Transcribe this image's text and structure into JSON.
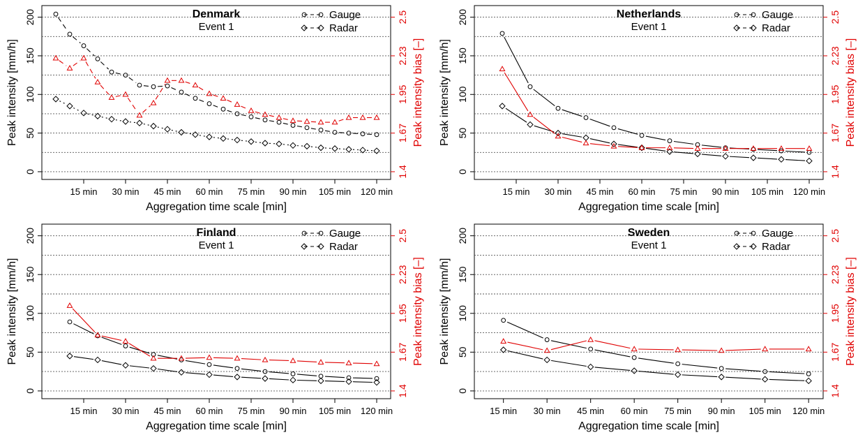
{
  "colors": {
    "gauge": "#000000",
    "radar": "#000000",
    "bias": "#e00000",
    "axis": "#000000",
    "grid": "#555555"
  },
  "legend": {
    "gauge": "Gauge",
    "radar": "Radar"
  },
  "chart_data": [
    {
      "type": "line",
      "title": "Denmark",
      "subtitle": "Event 1",
      "xlabel": "Aggregation time scale [min]",
      "ylabel": "Peak intensity [mm/h]",
      "y2label": "Peak intensity bias [–]",
      "x_ticks": [
        15,
        30,
        45,
        60,
        75,
        90,
        105,
        120
      ],
      "x_tick_labels": [
        "15 min",
        "30 min",
        "45 min",
        "60 min",
        "75 min",
        "90 min",
        "105 min",
        "120 min"
      ],
      "xlim": [
        0,
        125
      ],
      "y_ticks": [
        0,
        50,
        100,
        150,
        200
      ],
      "ylim": [
        -10,
        215
      ],
      "y2_tick_labels": [
        "1.4",
        "1.67",
        "1.95",
        "2.23",
        "2.5"
      ],
      "grid": "dotted-horizontal",
      "series": [
        {
          "name": "Gauge",
          "style": "dashed",
          "marker": "circle",
          "axis": "left",
          "x": [
            5,
            10,
            15,
            20,
            25,
            30,
            35,
            40,
            45,
            50,
            55,
            60,
            65,
            70,
            75,
            80,
            85,
            90,
            95,
            100,
            105,
            110,
            115,
            120
          ],
          "y": [
            204,
            178,
            163,
            146,
            129,
            125,
            112,
            110,
            111,
            103,
            95,
            88,
            81,
            75,
            71,
            67,
            64,
            60,
            57,
            54,
            51,
            50,
            49,
            48
          ]
        },
        {
          "name": "Radar",
          "style": "dashed",
          "marker": "diamond",
          "axis": "left",
          "x": [
            5,
            10,
            15,
            20,
            25,
            30,
            35,
            40,
            45,
            50,
            55,
            60,
            65,
            70,
            75,
            80,
            85,
            90,
            95,
            100,
            105,
            110,
            115,
            120
          ],
          "y": [
            94,
            85,
            76,
            72,
            68,
            65,
            63,
            59,
            55,
            51,
            48,
            45,
            43,
            41,
            39,
            37,
            36,
            34,
            33,
            31,
            30,
            29,
            28,
            27
          ]
        },
        {
          "name": "",
          "style": "dashed",
          "marker": "triangle",
          "axis": "right",
          "color": "bias",
          "x": [
            5,
            10,
            15,
            20,
            25,
            30,
            35,
            40,
            45,
            50,
            55,
            60,
            65,
            70,
            75,
            80,
            85,
            90,
            95,
            100,
            105,
            110,
            115,
            120
          ],
          "y": [
            147,
            134,
            147,
            116,
            96,
            100,
            73,
            89,
            118,
            118,
            112,
            101,
            95,
            87,
            79,
            74,
            70,
            66,
            65,
            64,
            64,
            70,
            70,
            70
          ]
        }
      ]
    },
    {
      "type": "line",
      "title": "Netherlands",
      "subtitle": "Event 1",
      "xlabel": "Aggregation time scale [min]",
      "ylabel": "Peak intensity [mm/h]",
      "y2label": "Peak intensity bias [–]",
      "x_ticks": [
        15,
        30,
        45,
        60,
        75,
        90,
        105,
        120
      ],
      "x_tick_labels": [
        "15 min",
        "30 min",
        "45 min",
        "60 min",
        "75 min",
        "90 min",
        "105 min",
        "120 min"
      ],
      "xlim": [
        0,
        125
      ],
      "y_ticks": [
        0,
        50,
        100,
        150,
        200
      ],
      "ylim": [
        -10,
        215
      ],
      "y2_tick_labels": [
        "1.4",
        "1.67",
        "1.95",
        "2.23",
        "2.5"
      ],
      "grid": "dotted-horizontal",
      "series": [
        {
          "name": "Gauge",
          "style": "solid",
          "marker": "circle",
          "axis": "left",
          "x": [
            10,
            20,
            30,
            40,
            50,
            60,
            70,
            80,
            90,
            100,
            110,
            120
          ],
          "y": [
            179,
            110,
            82,
            70,
            57,
            47,
            40,
            35,
            31,
            29,
            27,
            25
          ]
        },
        {
          "name": "Radar",
          "style": "solid",
          "marker": "diamond",
          "axis": "left",
          "x": [
            10,
            20,
            30,
            40,
            50,
            60,
            70,
            80,
            90,
            100,
            110,
            120
          ],
          "y": [
            85,
            61,
            50,
            44,
            36,
            31,
            26,
            23,
            20,
            18,
            16,
            14
          ]
        },
        {
          "name": "",
          "style": "solid",
          "marker": "triangle",
          "axis": "right",
          "color": "bias",
          "x": [
            10,
            20,
            30,
            40,
            50,
            60,
            70,
            80,
            90,
            100,
            110,
            120
          ],
          "y": [
            133,
            74,
            46,
            37,
            33,
            31,
            31,
            30,
            30,
            30,
            30,
            30
          ]
        }
      ]
    },
    {
      "type": "line",
      "title": "Finland",
      "subtitle": "Event 1",
      "xlabel": "Aggregation time scale [min]",
      "ylabel": "Peak intensity [mm/h]",
      "y2label": "Peak intensity bias [–]",
      "x_ticks": [
        15,
        30,
        45,
        60,
        75,
        90,
        105,
        120
      ],
      "x_tick_labels": [
        "15 min",
        "30 min",
        "45 min",
        "60 min",
        "75 min",
        "90 min",
        "105 min",
        "120 min"
      ],
      "xlim": [
        0,
        125
      ],
      "y_ticks": [
        0,
        50,
        100,
        150,
        200
      ],
      "ylim": [
        -10,
        215
      ],
      "y2_tick_labels": [
        "1.4",
        "1.67",
        "1.95",
        "2.23",
        "2.5"
      ],
      "grid": "dotted-horizontal",
      "series": [
        {
          "name": "Gauge",
          "style": "solid",
          "marker": "circle",
          "axis": "left",
          "x": [
            10,
            20,
            30,
            40,
            50,
            60,
            70,
            80,
            90,
            100,
            110,
            120
          ],
          "y": [
            89,
            71,
            58,
            47,
            40,
            34,
            29,
            25,
            22,
            19,
            17,
            16
          ]
        },
        {
          "name": "Radar",
          "style": "solid",
          "marker": "diamond",
          "axis": "left",
          "x": [
            10,
            20,
            30,
            40,
            50,
            60,
            70,
            80,
            90,
            100,
            110,
            120
          ],
          "y": [
            45,
            40,
            33,
            29,
            24,
            21,
            18,
            16,
            14,
            13,
            12,
            11
          ]
        },
        {
          "name": "",
          "style": "solid",
          "marker": "triangle",
          "axis": "right",
          "color": "bias",
          "x": [
            10,
            20,
            30,
            40,
            50,
            60,
            70,
            80,
            90,
            100,
            110,
            120
          ],
          "y": [
            110,
            72,
            64,
            42,
            42,
            43,
            42,
            40,
            39,
            37,
            36,
            35
          ]
        }
      ]
    },
    {
      "type": "line",
      "title": "Sweden",
      "subtitle": "Event 1",
      "xlabel": "Aggregation time scale [min]",
      "ylabel": "Peak intensity [mm/h]",
      "y2label": "Peak intensity bias [–]",
      "x_ticks": [
        15,
        30,
        45,
        60,
        75,
        90,
        105,
        120
      ],
      "x_tick_labels": [
        "15 min",
        "30 min",
        "45 min",
        "60 min",
        "75 min",
        "90 min",
        "105 min",
        "120 min"
      ],
      "xlim": [
        5,
        125
      ],
      "y_ticks": [
        0,
        50,
        100,
        150,
        200
      ],
      "ylim": [
        -10,
        215
      ],
      "y2_tick_labels": [
        "1.4",
        "1.67",
        "1.95",
        "2.23",
        "2.5"
      ],
      "grid": "dotted-horizontal",
      "series": [
        {
          "name": "Gauge",
          "style": "solid",
          "marker": "circle",
          "axis": "left",
          "x": [
            15,
            30,
            45,
            60,
            75,
            90,
            105,
            120
          ],
          "y": [
            91,
            66,
            54,
            43,
            35,
            29,
            25,
            22
          ]
        },
        {
          "name": "Radar",
          "style": "solid",
          "marker": "diamond",
          "axis": "left",
          "x": [
            15,
            30,
            45,
            60,
            75,
            90,
            105,
            120
          ],
          "y": [
            53,
            40,
            31,
            26,
            21,
            18,
            15,
            13
          ]
        },
        {
          "name": "",
          "style": "solid",
          "marker": "triangle",
          "axis": "right",
          "color": "bias",
          "x": [
            15,
            30,
            45,
            60,
            75,
            90,
            105,
            120
          ],
          "y": [
            64,
            52,
            66,
            54,
            53,
            52,
            54,
            54
          ]
        }
      ]
    }
  ]
}
